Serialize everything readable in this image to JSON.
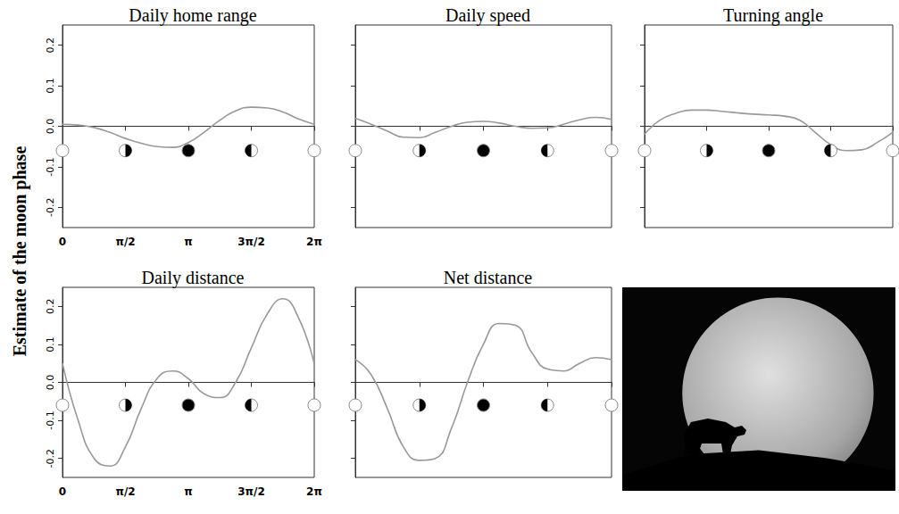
{
  "chart_data": [
    {
      "type": "line",
      "title": "Daily home range",
      "ylabel": "Estimate of the moon phase",
      "color": "#999999",
      "x": [
        0,
        0.39,
        0.79,
        1.18,
        1.57,
        1.96,
        2.36,
        2.75,
        3.14,
        3.53,
        3.93,
        4.32,
        4.71,
        5.11,
        5.5,
        5.89,
        6.28
      ],
      "values": [
        0.005,
        0.003,
        -0.003,
        -0.015,
        -0.03,
        -0.042,
        -0.05,
        -0.052,
        -0.04,
        -0.015,
        0.015,
        0.038,
        0.047,
        0.045,
        0.035,
        0.018,
        0.005
      ],
      "xlim": [
        0,
        6.2832
      ],
      "xticks": [
        {
          "value": 0,
          "label": "0"
        },
        {
          "value": 1.5708,
          "label": "π/2"
        },
        {
          "value": 3.1416,
          "label": "π"
        },
        {
          "value": 4.7124,
          "label": "3π/2"
        },
        {
          "value": 6.2832,
          "label": "2π"
        }
      ],
      "ylim": [
        -0.25,
        0.25
      ],
      "yticks": [
        -0.2,
        -0.1,
        {
          "value": 0,
          "label": "0.0"
        },
        0.1,
        0.2
      ],
      "grid": false
    },
    {
      "type": "line",
      "title": "Daily speed",
      "color": "#999999",
      "x": [
        0,
        0.39,
        0.79,
        1.18,
        1.57,
        1.96,
        2.36,
        2.75,
        3.14,
        3.53,
        3.93,
        4.32,
        4.71,
        5.11,
        5.5,
        5.89,
        6.28
      ],
      "values": [
        0.02,
        0.005,
        -0.012,
        -0.027,
        -0.028,
        -0.015,
        0.0,
        0.01,
        0.012,
        0.008,
        0.0,
        -0.005,
        -0.004,
        0.005,
        0.016,
        0.022,
        0.017
      ],
      "xlim": [
        0,
        6.2832
      ],
      "xticks": [
        {
          "value": 0,
          "label": "0"
        },
        {
          "value": 1.5708,
          "label": "π/2"
        },
        {
          "value": 3.1416,
          "label": "π"
        },
        {
          "value": 4.7124,
          "label": "3π/2"
        },
        {
          "value": 6.2832,
          "label": "2π"
        }
      ],
      "ylim": [
        -0.25,
        0.25
      ],
      "yticks": [
        -0.2,
        -0.1,
        {
          "value": 0,
          "label": "0.0"
        },
        0.1,
        0.2
      ],
      "grid": false,
      "tick_labels": false
    },
    {
      "type": "line",
      "title": "Turning angle",
      "color": "#999999",
      "x": [
        0,
        0.39,
        0.79,
        1.18,
        1.57,
        1.96,
        2.36,
        2.75,
        3.14,
        3.53,
        3.93,
        4.32,
        4.71,
        5.11,
        5.5,
        5.89,
        6.28
      ],
      "values": [
        -0.02,
        0.015,
        0.032,
        0.04,
        0.04,
        0.037,
        0.033,
        0.03,
        0.028,
        0.025,
        0.015,
        -0.015,
        -0.045,
        -0.06,
        -0.058,
        -0.04,
        -0.015
      ],
      "xlim": [
        0,
        6.2832
      ],
      "xticks": [
        {
          "value": 0,
          "label": "0"
        },
        {
          "value": 1.5708,
          "label": "π/2"
        },
        {
          "value": 3.1416,
          "label": "π"
        },
        {
          "value": 4.7124,
          "label": "3π/2"
        },
        {
          "value": 6.2832,
          "label": "2π"
        }
      ],
      "ylim": [
        -0.25,
        0.25
      ],
      "yticks": [
        -0.2,
        -0.1,
        {
          "value": 0,
          "label": "0.0"
        },
        0.1,
        0.2
      ],
      "grid": false,
      "tick_labels": false
    },
    {
      "type": "line",
      "title": "Daily distance",
      "color": "#999999",
      "x": [
        0,
        0.39,
        0.79,
        1.18,
        1.57,
        1.96,
        2.36,
        2.75,
        3.14,
        3.53,
        3.93,
        4.32,
        4.71,
        5.11,
        5.5,
        5.89,
        6.28
      ],
      "values": [
        0.05,
        -0.1,
        -0.2,
        -0.22,
        -0.17,
        -0.07,
        0.01,
        0.03,
        0.01,
        -0.03,
        -0.04,
        0.0,
        0.09,
        0.18,
        0.22,
        0.17,
        0.05
      ],
      "xlim": [
        0,
        6.2832
      ],
      "xticks": [
        {
          "value": 0,
          "label": "0"
        },
        {
          "value": 1.5708,
          "label": "π/2"
        },
        {
          "value": 3.1416,
          "label": "π"
        },
        {
          "value": 4.7124,
          "label": "3π/2"
        },
        {
          "value": 6.2832,
          "label": "2π"
        }
      ],
      "ylim": [
        -0.25,
        0.25
      ],
      "yticks": [
        -0.2,
        -0.1,
        {
          "value": 0,
          "label": "0.0"
        },
        0.1,
        0.2
      ],
      "grid": false
    },
    {
      "type": "line",
      "title": "Net distance",
      "color": "#999999",
      "x": [
        0,
        0.39,
        0.79,
        1.18,
        1.57,
        1.96,
        2.36,
        2.75,
        3.14,
        3.53,
        3.93,
        4.32,
        4.71,
        5.11,
        5.5,
        5.89,
        6.28
      ],
      "values": [
        0.06,
        0.02,
        -0.07,
        -0.17,
        -0.205,
        -0.2,
        -0.12,
        0.0,
        0.1,
        0.155,
        0.15,
        0.08,
        0.035,
        0.03,
        0.05,
        0.065,
        0.06
      ],
      "xlim": [
        0,
        6.2832
      ],
      "xticks": [
        {
          "value": 0,
          "label": "0"
        },
        {
          "value": 1.5708,
          "label": "π/2"
        },
        {
          "value": 3.1416,
          "label": "π"
        },
        {
          "value": 4.7124,
          "label": "3π/2"
        },
        {
          "value": 6.2832,
          "label": "2π"
        }
      ],
      "ylim": [
        -0.25,
        0.25
      ],
      "yticks": [
        -0.2,
        -0.1,
        {
          "value": 0,
          "label": "0.0"
        },
        0.1,
        0.2
      ],
      "grid": false,
      "tick_labels": false
    }
  ]
}
